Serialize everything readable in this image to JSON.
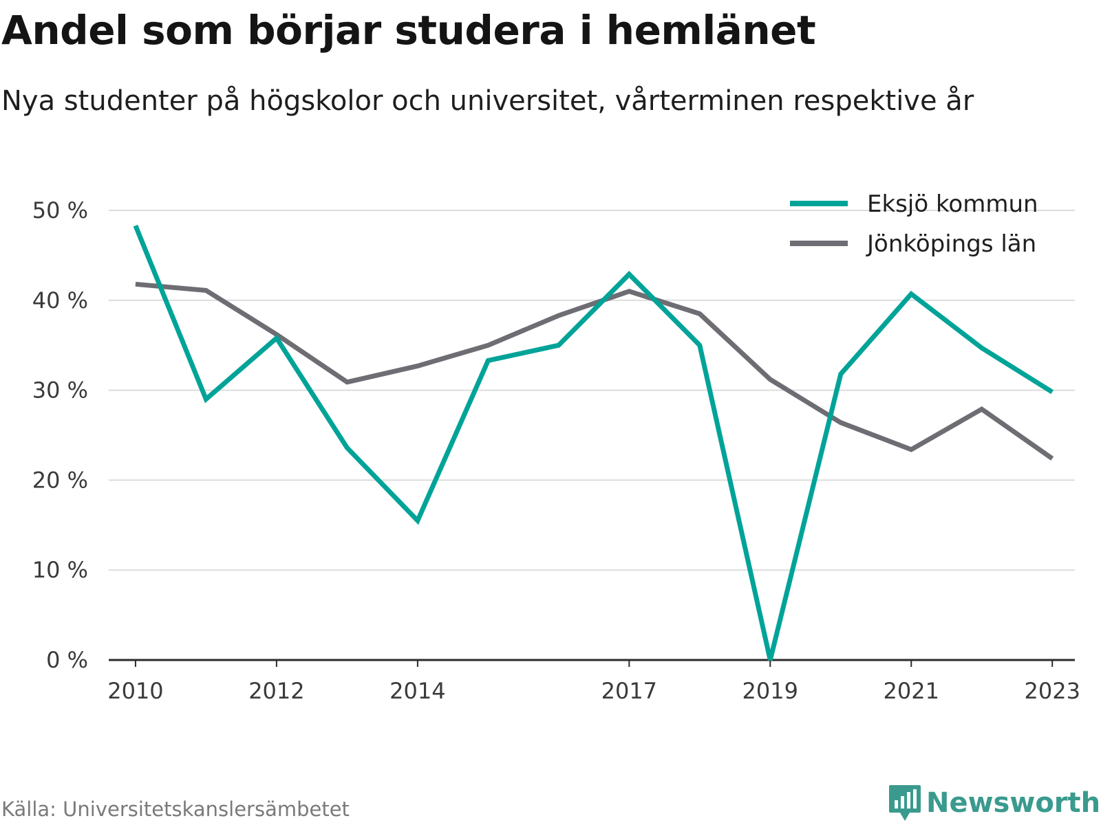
{
  "header": {
    "title": "Andel som börjar studera i hemlänet",
    "subtitle": "Nya studenter på högskolor och universitet, vårterminen respektive år"
  },
  "footer": {
    "source": "Källa: Universitetskanslersämbetet",
    "brand": "Newsworthy",
    "brand_icon": "newsworthy-logo-icon"
  },
  "chart_data": {
    "type": "line",
    "x": [
      2010,
      2011,
      2012,
      2013,
      2014,
      2015,
      2016,
      2017,
      2018,
      2019,
      2020,
      2021,
      2022,
      2023
    ],
    "x_tick_labels": [
      "2010",
      "2012",
      "2014",
      "2017",
      "2019",
      "2021",
      "2023"
    ],
    "y_tick_labels": [
      "0 %",
      "10 %",
      "20 %",
      "30 %",
      "40 %",
      "50 %"
    ],
    "ylim": [
      0,
      50
    ],
    "grid": true,
    "legend_position": "top-right",
    "series": [
      {
        "name": "Eksjö kommun",
        "color": "#00a398",
        "values": [
          48.3,
          29.0,
          35.8,
          23.6,
          15.5,
          33.3,
          35.0,
          42.9,
          35.0,
          0.0,
          31.8,
          40.7,
          34.7,
          29.8
        ]
      },
      {
        "name": "Jönköpings län",
        "color": "#6e6d73",
        "values": [
          41.8,
          41.1,
          36.2,
          30.9,
          32.7,
          35.0,
          38.3,
          41.0,
          38.5,
          31.2,
          26.4,
          23.4,
          27.9,
          22.4
        ]
      }
    ]
  }
}
